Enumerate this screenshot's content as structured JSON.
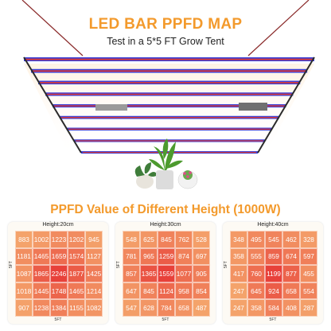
{
  "header": {
    "title": "LED BAR PPFD MAP",
    "subtitle": "Test in a 5*5 FT Grow Tent"
  },
  "section": {
    "title": "PPFD Value of Different Height (1000W)"
  },
  "colors": {
    "accent": "#f39a2c",
    "cell_low": "#f4a36b",
    "cell_high": "#e8413a",
    "bar_blue": "#3b3fd6",
    "bar_red": "#e23a2e"
  },
  "maps": [
    {
      "height_label": "Height:20cm",
      "axis_x": "5FT",
      "axis_y": "5FT",
      "values": [
        [
          883,
          1002,
          1223,
          1202,
          945
        ],
        [
          1181,
          1465,
          1659,
          1574,
          1127
        ],
        [
          1087,
          1865,
          2246,
          1877,
          1425
        ],
        [
          1018,
          1445,
          1748,
          1465,
          1214
        ],
        [
          907,
          1238,
          1384,
          1155,
          1082
        ]
      ]
    },
    {
      "height_label": "Height:30cm",
      "axis_x": "5FT",
      "axis_y": "5FT",
      "values": [
        [
          548,
          625,
          845,
          762,
          528
        ],
        [
          781,
          965,
          1259,
          874,
          697
        ],
        [
          857,
          1365,
          1559,
          1077,
          905
        ],
        [
          647,
          845,
          1124,
          958,
          854
        ],
        [
          547,
          628,
          784,
          658,
          487
        ]
      ]
    },
    {
      "height_label": "Height:40cm",
      "axis_x": "5FT",
      "axis_y": "5FT",
      "values": [
        [
          348,
          495,
          545,
          462,
          328
        ],
        [
          358,
          555,
          859,
          674,
          597
        ],
        [
          417,
          760,
          1199,
          877,
          455
        ],
        [
          247,
          645,
          924,
          658,
          554
        ],
        [
          247,
          358,
          584,
          408,
          287
        ]
      ]
    }
  ]
}
